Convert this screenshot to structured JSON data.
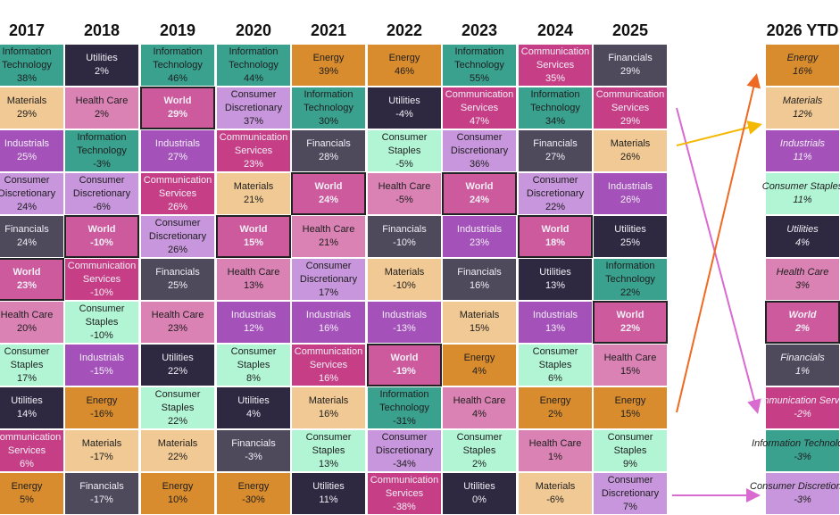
{
  "chart_data": {
    "type": "table",
    "title": "",
    "colors": {
      "Information Technology": "#3aa18f",
      "Utilities": "#2e2840",
      "Materials": "#f1c994",
      "Health Care": "#d982b3",
      "World": "#cc5a9c",
      "Industrials": "#a452b9",
      "Consumer Discretionary": "#c896dc",
      "Communication Services": "#c63f86",
      "Financials": "#4e4a5c",
      "Consumer Staples": "#b2f5d5",
      "Energy": "#d98c2e"
    },
    "light_text_sectors": [
      "Utilities",
      "World",
      "Industrials",
      "Communication Services",
      "Financials"
    ],
    "columns": [
      {
        "year": "2017",
        "cells": [
          [
            "Information Technology",
            "38%"
          ],
          [
            "Materials",
            "29%"
          ],
          [
            "Industrials",
            "25%"
          ],
          [
            "Consumer Discretionary",
            "24%"
          ],
          [
            "Financials",
            "24%"
          ],
          [
            "World",
            "23%"
          ],
          [
            "Health Care",
            "20%"
          ],
          [
            "Consumer Staples",
            "17%"
          ],
          [
            "Utilities",
            "14%"
          ],
          [
            "Communication Services",
            "6%"
          ],
          [
            "Energy",
            "5%"
          ]
        ]
      },
      {
        "year": "2018",
        "cells": [
          [
            "Utilities",
            "2%"
          ],
          [
            "Health Care",
            "2%"
          ],
          [
            "Information Technology",
            "-3%"
          ],
          [
            "Consumer Discretionary",
            "-6%"
          ],
          [
            "World",
            "-10%"
          ],
          [
            "Communication Services",
            "-10%"
          ],
          [
            "Consumer Staples",
            "-10%"
          ],
          [
            "Industrials",
            "-15%"
          ],
          [
            "Energy",
            "-16%"
          ],
          [
            "Materials",
            "-17%"
          ],
          [
            "Financials",
            "-17%"
          ]
        ]
      },
      {
        "year": "2019",
        "cells": [
          [
            "Information Technology",
            "46%"
          ],
          [
            "World",
            "29%"
          ],
          [
            "Industrials",
            "27%"
          ],
          [
            "Communication Services",
            "26%"
          ],
          [
            "Consumer Discretionary",
            "26%"
          ],
          [
            "Financials",
            "25%"
          ],
          [
            "Health Care",
            "23%"
          ],
          [
            "Utilities",
            "22%"
          ],
          [
            "Consumer Staples",
            "22%"
          ],
          [
            "Materials",
            "22%"
          ],
          [
            "Energy",
            "10%"
          ]
        ]
      },
      {
        "year": "2020",
        "cells": [
          [
            "Information Technology",
            "44%"
          ],
          [
            "Consumer Discretionary",
            "37%"
          ],
          [
            "Communication Services",
            "23%"
          ],
          [
            "Materials",
            "21%"
          ],
          [
            "World",
            "15%"
          ],
          [
            "Health Care",
            "13%"
          ],
          [
            "Industrials",
            "12%"
          ],
          [
            "Consumer Staples",
            "8%"
          ],
          [
            "Utilities",
            "4%"
          ],
          [
            "Financials",
            "-3%"
          ],
          [
            "Energy",
            "-30%"
          ]
        ]
      },
      {
        "year": "2021",
        "cells": [
          [
            "Energy",
            "39%"
          ],
          [
            "Information Technology",
            "30%"
          ],
          [
            "Financials",
            "28%"
          ],
          [
            "World",
            "24%"
          ],
          [
            "Health Care",
            "21%"
          ],
          [
            "Consumer Discretionary",
            "17%"
          ],
          [
            "Industrials",
            "16%"
          ],
          [
            "Communication Services",
            "16%"
          ],
          [
            "Materials",
            "16%"
          ],
          [
            "Consumer Staples",
            "13%"
          ],
          [
            "Utilities",
            "11%"
          ]
        ]
      },
      {
        "year": "2022",
        "cells": [
          [
            "Energy",
            "46%"
          ],
          [
            "Utilities",
            "-4%"
          ],
          [
            "Consumer Staples",
            "-5%"
          ],
          [
            "Health Care",
            "-5%"
          ],
          [
            "Financials",
            "-10%"
          ],
          [
            "Materials",
            "-10%"
          ],
          [
            "Industrials",
            "-13%"
          ],
          [
            "World",
            "-19%"
          ],
          [
            "Information Technology",
            "-31%"
          ],
          [
            "Consumer Discretionary",
            "-34%"
          ],
          [
            "Communication Services",
            "-38%"
          ]
        ]
      },
      {
        "year": "2023",
        "cells": [
          [
            "Information Technology",
            "55%"
          ],
          [
            "Communication Services",
            "47%"
          ],
          [
            "Consumer Discretionary",
            "36%"
          ],
          [
            "World",
            "24%"
          ],
          [
            "Industrials",
            "23%"
          ],
          [
            "Financials",
            "16%"
          ],
          [
            "Materials",
            "15%"
          ],
          [
            "Energy",
            "4%"
          ],
          [
            "Health Care",
            "4%"
          ],
          [
            "Consumer Staples",
            "2%"
          ],
          [
            "Utilities",
            "0%"
          ]
        ]
      },
      {
        "year": "2024",
        "cells": [
          [
            "Communication Services",
            "35%"
          ],
          [
            "Information Technology",
            "34%"
          ],
          [
            "Financials",
            "27%"
          ],
          [
            "Consumer Discretionary",
            "22%"
          ],
          [
            "World",
            "18%"
          ],
          [
            "Utilities",
            "13%"
          ],
          [
            "Industrials",
            "13%"
          ],
          [
            "Consumer Staples",
            "6%"
          ],
          [
            "Energy",
            "2%"
          ],
          [
            "Health Care",
            "1%"
          ],
          [
            "Materials",
            "-6%"
          ]
        ]
      },
      {
        "year": "2025",
        "cells": [
          [
            "Financials",
            "29%"
          ],
          [
            "Communication Services",
            "29%"
          ],
          [
            "Materials",
            "26%"
          ],
          [
            "Industrials",
            "26%"
          ],
          [
            "Utilities",
            "25%"
          ],
          [
            "Information Technology",
            "22%"
          ],
          [
            "World",
            "22%"
          ],
          [
            "Health Care",
            "15%"
          ],
          [
            "Energy",
            "15%"
          ],
          [
            "Consumer Staples",
            "9%"
          ],
          [
            "Consumer Discretionary",
            "7%"
          ]
        ]
      },
      {
        "year": "2026 YTD",
        "cells": [
          [
            "Energy",
            "16%"
          ],
          [
            "Materials",
            "12%"
          ],
          [
            "Industrials",
            "11%"
          ],
          [
            "Consumer Staples",
            "11%"
          ],
          [
            "Utilities",
            "4%"
          ],
          [
            "Health Care",
            "3%"
          ],
          [
            "World",
            "2%"
          ],
          [
            "Financials",
            "1%"
          ],
          [
            "Communication Services",
            "-2%"
          ],
          [
            "Information Technology",
            "-3%"
          ],
          [
            "Consumer Discretionary",
            "-3%"
          ]
        ]
      }
    ],
    "arrows": [
      {
        "from": "Communication Services 2025",
        "to": "Communication Services 2026 YTD",
        "color": "#d86ad0"
      },
      {
        "from": "Materials 2025",
        "to": "Materials 2026 YTD",
        "color": "#f5b800"
      },
      {
        "from": "Energy 2025",
        "to": "Energy 2026 YTD",
        "color": "#ee6a22"
      },
      {
        "from": "Consumer Discretionary 2025",
        "to": "Consumer Discretionary 2026 YTD",
        "color": "#d86ad0"
      }
    ]
  }
}
